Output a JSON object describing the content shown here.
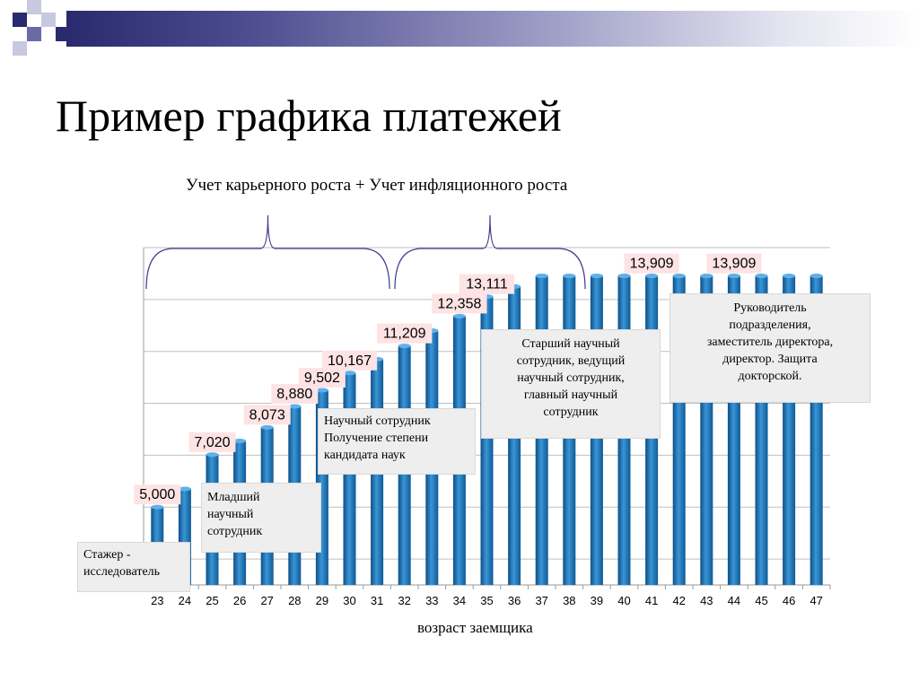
{
  "slide": {
    "title": "Пример графика платежей",
    "subtitle": "Учет карьерного роста + Учет инфляционного роста",
    "xlabel": "возраст заемщика",
    "theme_colors": {
      "dark": "#2a2a6e",
      "mid": "#6a6aa8",
      "light": "#c8c8e0"
    }
  },
  "callouts": [
    {
      "id": "intern",
      "text": "Стажер -\nисследователь"
    },
    {
      "id": "junior",
      "text": "Младший\nнаучный\nсотрудник"
    },
    {
      "id": "researcher",
      "text": "Научный сотрудник\nПолучение степени\nкандидата наук"
    },
    {
      "id": "senior",
      "text": "Старший научный\nсотрудник, ведущий\nнаучный сотрудник,\nглавный научный\nсотрудник"
    },
    {
      "id": "head",
      "text": "Руководитель\nподразделения,\nзаместитель директора,\nдиректор. Защита\nдокторской."
    }
  ],
  "chart_data": {
    "type": "bar",
    "categories": [
      "23",
      "24",
      "25",
      "26",
      "27",
      "28",
      "29",
      "30",
      "31",
      "32",
      "33",
      "34",
      "35",
      "36",
      "37",
      "38",
      "39",
      "40",
      "41",
      "42",
      "43",
      "44",
      "45",
      "46",
      "47"
    ],
    "values": [
      5000,
      5700,
      7020,
      7550,
      8073,
      8880,
      9502,
      10167,
      10700,
      11209,
      11800,
      12358,
      13111,
      13500,
      13909,
      13909,
      13909,
      13909,
      13909,
      13909,
      13909,
      13909,
      13909,
      13909,
      13909
    ],
    "data_labels": [
      {
        "category": "23",
        "text": "5,000"
      },
      {
        "category": "25",
        "text": "7,020"
      },
      {
        "category": "27",
        "text": "8,073"
      },
      {
        "category": "28",
        "text": "8,880"
      },
      {
        "category": "29",
        "text": "9,502"
      },
      {
        "category": "30",
        "text": "10,167"
      },
      {
        "category": "32",
        "text": "11,209"
      },
      {
        "category": "34",
        "text": "12,358"
      },
      {
        "category": "35",
        "text": "13,111"
      },
      {
        "category": "41",
        "text": "13,909"
      },
      {
        "category": "44",
        "text": "13,909"
      }
    ],
    "ylim": [
      2000,
      15000
    ],
    "grid": true,
    "bar_color": "#1a6aab"
  }
}
